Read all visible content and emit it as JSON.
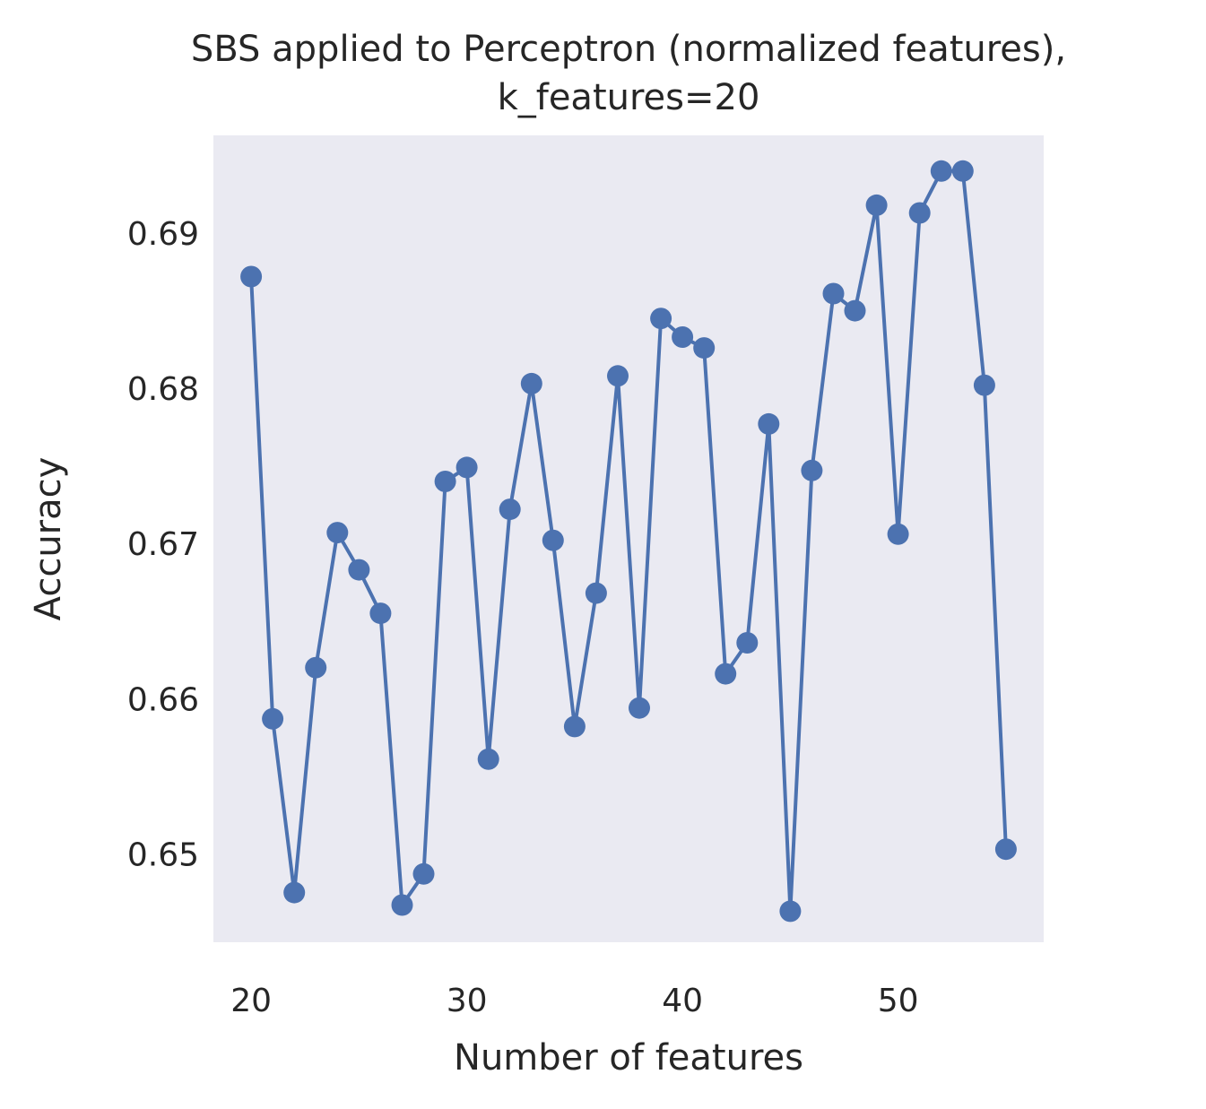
{
  "chart_data": {
    "type": "line",
    "title": "SBS applied to Perceptron (normalized features),",
    "subtitle": "k_features=20",
    "xlabel": "Number of features",
    "ylabel": "Accuracy",
    "xlim": [
      18.25,
      56.75
    ],
    "ylim": [
      0.6443,
      0.6963
    ],
    "xticks": [
      20,
      30,
      40,
      50
    ],
    "yticks": [
      0.65,
      0.66,
      0.67,
      0.68,
      0.69
    ],
    "ytick_labels": [
      "0.65",
      "0.66",
      "0.67",
      "0.68",
      "0.69"
    ],
    "grid": false,
    "legend": "none",
    "colors": {
      "series": "#4c72b0",
      "plot_background": "#eaeaf2"
    },
    "x": [
      20,
      21,
      22,
      23,
      24,
      25,
      26,
      27,
      28,
      29,
      30,
      31,
      32,
      33,
      34,
      35,
      36,
      37,
      38,
      39,
      40,
      41,
      42,
      43,
      44,
      45,
      46,
      47,
      48,
      49,
      50,
      51,
      52,
      53,
      54,
      55
    ],
    "y": [
      0.6872,
      0.6587,
      0.6475,
      0.662,
      0.6707,
      0.6683,
      0.6655,
      0.6467,
      0.6487,
      0.674,
      0.6749,
      0.6561,
      0.6722,
      0.6803,
      0.6702,
      0.6582,
      0.6668,
      0.6808,
      0.6594,
      0.6845,
      0.6833,
      0.6826,
      0.6616,
      0.6636,
      0.6777,
      0.6463,
      0.6747,
      0.6861,
      0.685,
      0.6918,
      0.6706,
      0.6913,
      0.694,
      0.694,
      0.6802,
      0.6503
    ]
  }
}
